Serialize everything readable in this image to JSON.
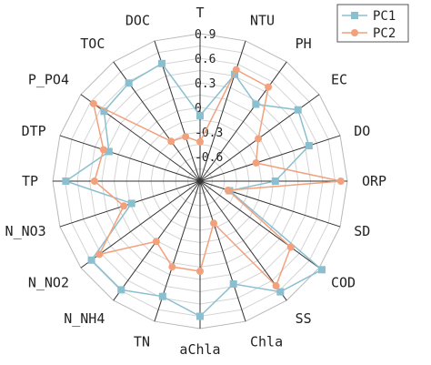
{
  "chart_data": {
    "type": "radar",
    "categories": [
      "T",
      "NTU",
      "PH",
      "EC",
      "DO",
      "ORP",
      "SD",
      "COD",
      "SS",
      "Chla",
      "aChla",
      "TN",
      "N_NH4",
      "N_NO2",
      "N_NO3",
      "TP",
      "DTP",
      "P_PO4",
      "TOC",
      "DOC"
    ],
    "rlim": [
      -0.9,
      0.9
    ],
    "ticks": [
      -0.6,
      -0.3,
      0.0,
      0.3,
      0.6,
      0.9
    ],
    "tick_labels": [
      "-0.6",
      "-0.3",
      "0",
      "0.3",
      "0.6",
      "0.9"
    ],
    "grid": "polygon",
    "legend_position": "top-right",
    "series": [
      {
        "name": "PC1",
        "color": "#8abfd0",
        "marker": "square",
        "values": [
          -0.1,
          0.47,
          0.26,
          0.58,
          0.5,
          0.02,
          -0.52,
          0.94,
          0.77,
          0.42,
          0.75,
          0.58,
          0.74,
          0.74,
          -0.02,
          0.74,
          0.27,
          0.55,
          0.58,
          0.61
        ]
      },
      {
        "name": "PC2",
        "color": "#f2a17c",
        "marker": "circle",
        "values": [
          -0.42,
          0.53,
          0.52,
          -0.02,
          -0.18,
          0.82,
          -0.54,
          0.47,
          0.68,
          -0.36,
          0.2,
          0.2,
          0.01,
          0.62,
          0.08,
          0.39,
          0.34,
          0.71,
          -0.3,
          -0.33
        ]
      }
    ]
  }
}
